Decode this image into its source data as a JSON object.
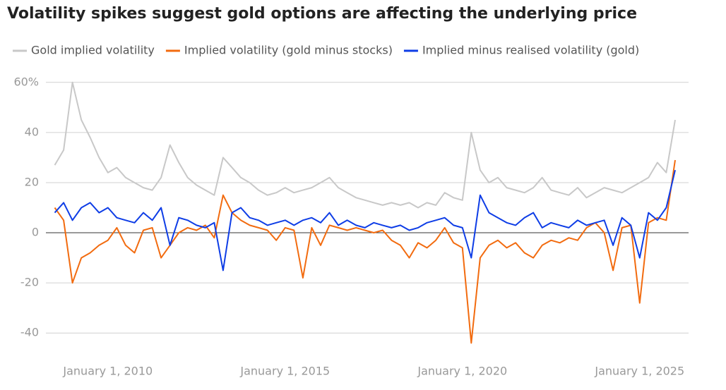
{
  "chart_data": {
    "type": "line",
    "title": "Volatility spikes suggest gold options are affecting the underlying price",
    "x": [
      2008.5,
      2008.75,
      2009,
      2009.25,
      2009.5,
      2009.75,
      2010,
      2010.25,
      2010.5,
      2010.75,
      2011,
      2011.25,
      2011.5,
      2011.75,
      2012,
      2012.25,
      2012.5,
      2012.75,
      2013,
      2013.25,
      2013.5,
      2013.75,
      2014,
      2014.25,
      2014.5,
      2014.75,
      2015,
      2015.25,
      2015.5,
      2015.75,
      2016,
      2016.25,
      2016.5,
      2016.75,
      2017,
      2017.25,
      2017.5,
      2017.75,
      2018,
      2018.25,
      2018.5,
      2018.75,
      2019,
      2019.25,
      2019.5,
      2019.75,
      2020,
      2020.25,
      2020.5,
      2020.75,
      2021,
      2021.25,
      2021.5,
      2021.75,
      2022,
      2022.25,
      2022.5,
      2022.75,
      2023,
      2023.25,
      2023.5,
      2023.75,
      2024,
      2024.25,
      2024.5,
      2024.75,
      2025,
      2025.25,
      2025.5,
      2025.75,
      2026
    ],
    "series": [
      {
        "name": "Gold implied volatility",
        "color": "#c8c8c8",
        "values": [
          27,
          33,
          60,
          45,
          38,
          30,
          24,
          26,
          22,
          20,
          18,
          17,
          22,
          35,
          28,
          22,
          19,
          17,
          15,
          30,
          26,
          22,
          20,
          17,
          15,
          16,
          18,
          16,
          17,
          18,
          20,
          22,
          18,
          16,
          14,
          13,
          12,
          11,
          12,
          11,
          12,
          10,
          12,
          11,
          16,
          14,
          13,
          40,
          25,
          20,
          22,
          18,
          17,
          16,
          18,
          22,
          17,
          16,
          15,
          18,
          14,
          16,
          18,
          17,
          16,
          18,
          20,
          22,
          28,
          24,
          45
        ]
      },
      {
        "name": "Implied volatility (gold minus stocks)",
        "color": "#f26b0f",
        "values": [
          10,
          5,
          -20,
          -10,
          -8,
          -5,
          -3,
          2,
          -5,
          -8,
          1,
          2,
          -10,
          -5,
          0,
          2,
          1,
          3,
          -2,
          15,
          8,
          5,
          3,
          2,
          1,
          -3,
          2,
          1,
          -18,
          2,
          -5,
          3,
          2,
          1,
          2,
          1,
          0,
          1,
          -3,
          -5,
          -10,
          -4,
          -6,
          -3,
          2,
          -4,
          -6,
          -44,
          -10,
          -5,
          -3,
          -6,
          -4,
          -8,
          -10,
          -5,
          -3,
          -4,
          -2,
          -3,
          2,
          4,
          0,
          -15,
          2,
          3,
          -28,
          4,
          6,
          5,
          29
        ]
      },
      {
        "name": "Implied minus realised volatility (gold)",
        "color": "#0e3de6",
        "values": [
          8,
          12,
          5,
          10,
          12,
          8,
          10,
          6,
          5,
          4,
          8,
          5,
          10,
          -5,
          6,
          5,
          3,
          2,
          4,
          -15,
          8,
          10,
          6,
          5,
          3,
          4,
          5,
          3,
          5,
          6,
          4,
          8,
          3,
          5,
          3,
          2,
          4,
          3,
          2,
          3,
          1,
          2,
          4,
          5,
          6,
          3,
          2,
          -10,
          15,
          8,
          6,
          4,
          3,
          6,
          8,
          2,
          4,
          3,
          2,
          5,
          3,
          4,
          5,
          -5,
          6,
          3,
          -10,
          8,
          5,
          10,
          25
        ]
      }
    ],
    "xlim": [
      2008.45,
      2026.2
    ],
    "xticks": [
      {
        "value": 2010,
        "label": "January 1, 2010"
      },
      {
        "value": 2015,
        "label": "January 1, 2015"
      },
      {
        "value": 2020,
        "label": "January 1, 2020"
      },
      {
        "value": 2025,
        "label": "January 1, 2025"
      }
    ],
    "ylim": [
      -45,
      65
    ],
    "yticks": [
      -40,
      -20,
      0,
      20,
      40,
      {
        "value": 60,
        "label": "60%"
      }
    ],
    "grid": true
  }
}
